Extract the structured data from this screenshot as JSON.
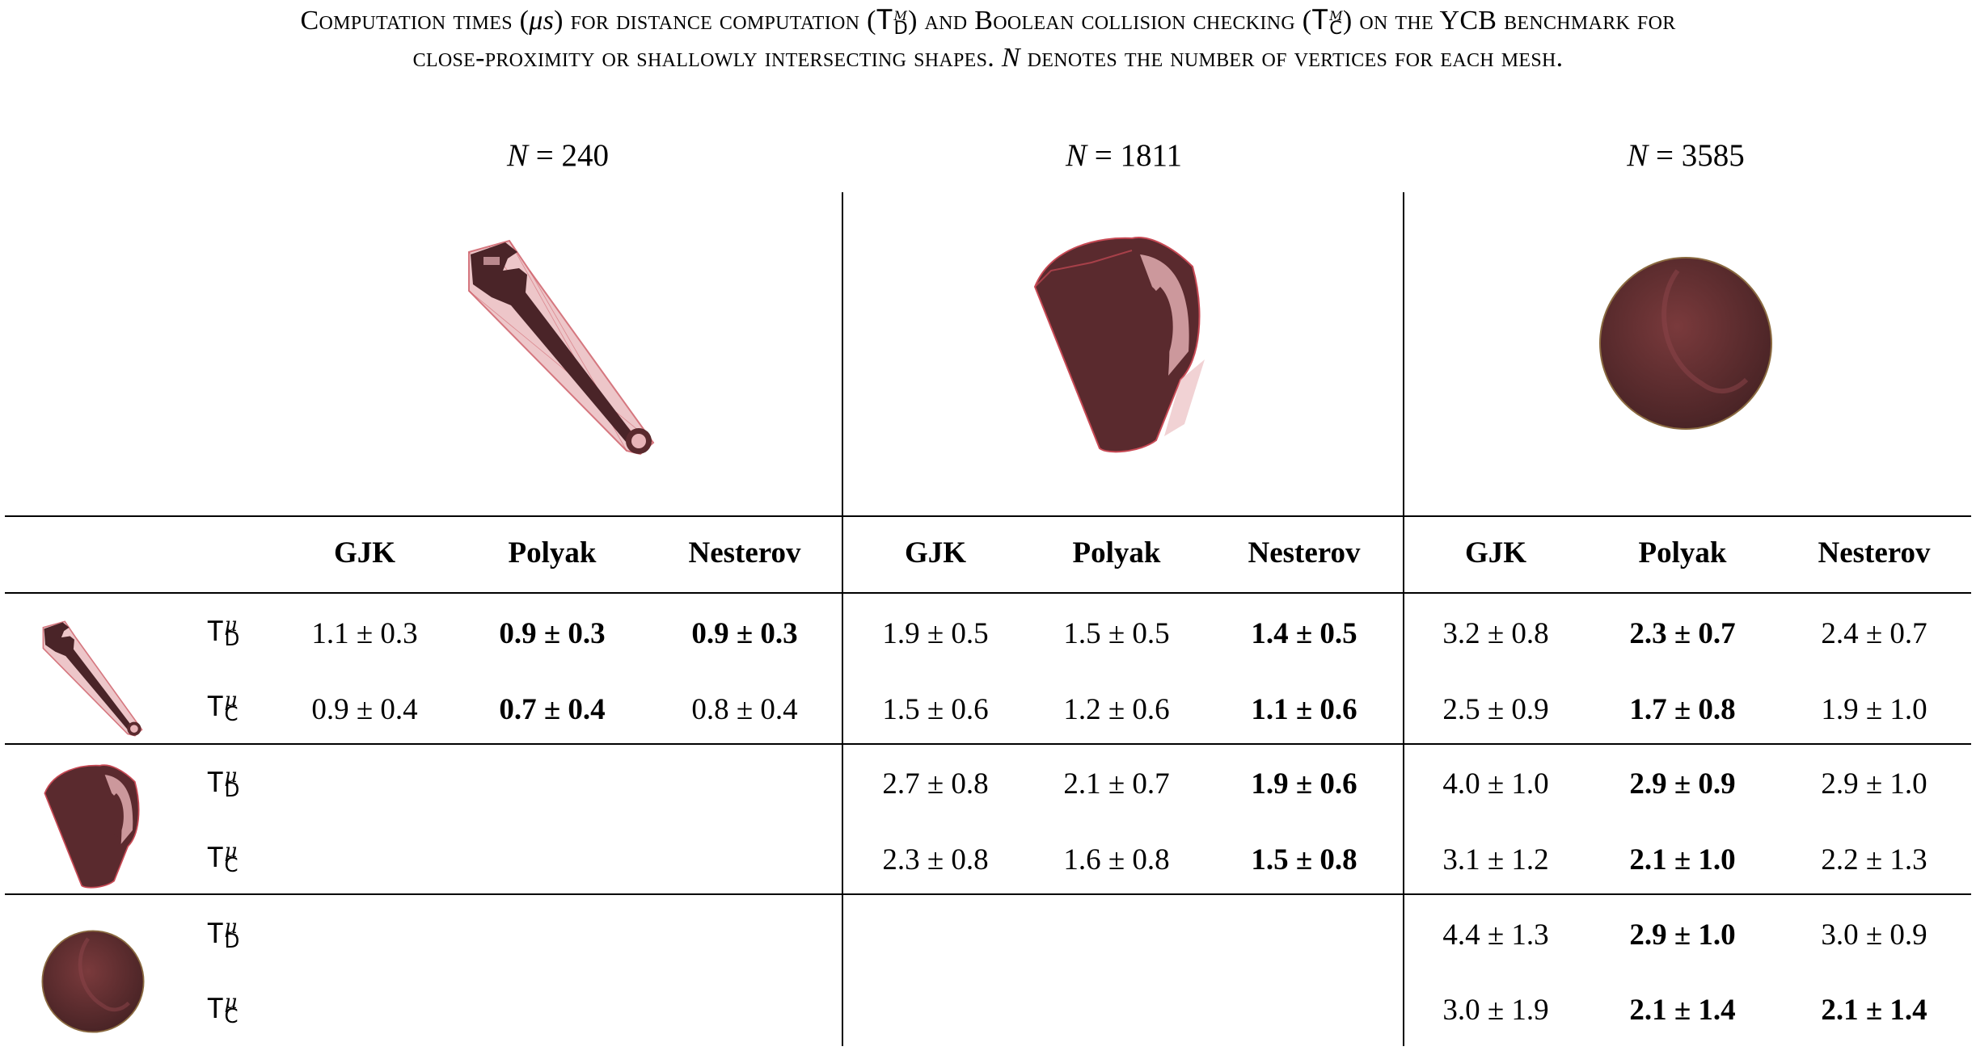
{
  "caption": {
    "p1": "Computation times (",
    "mu_s": "μs",
    "p2": ") for distance computation (",
    "T": "T",
    "mu": "μ",
    "D": "D",
    "p3": ") and Boolean collision checking (",
    "C": "C",
    "p4": ") on the YCB benchmark for",
    "line2a": "close-proximity or shallowly intersecting shapes. ",
    "N": "N",
    "line2b": " denotes the number of vertices for each mesh."
  },
  "groups": [
    {
      "n_label": "N",
      "eq": " = 240",
      "mesh_icon": "wrench-mesh-icon"
    },
    {
      "n_label": "N",
      "eq": " = 1811",
      "mesh_icon": "pitcher-mesh-icon"
    },
    {
      "n_label": "N",
      "eq": " = 3585",
      "mesh_icon": "ball-mesh-icon"
    }
  ],
  "methods": [
    "GJK",
    "Polyak",
    "Nesterov",
    "GJK",
    "Polyak",
    "Nesterov",
    "GJK",
    "Polyak",
    "Nesterov"
  ],
  "row_label": {
    "T": "T",
    "mu": "μ",
    "D": "D",
    "C": "C"
  },
  "rows": [
    {
      "mesh_icon": "wrench-mesh-icon",
      "td": [
        "1.1 ± 0.3",
        "0.9 ± 0.3",
        "0.9 ± 0.3",
        "1.9 ± 0.5",
        "1.5 ± 0.5",
        "1.4 ± 0.5",
        "3.2 ± 0.8",
        "2.3 ± 0.7",
        "2.4 ± 0.7"
      ],
      "td_bold": [
        false,
        true,
        true,
        false,
        false,
        true,
        false,
        true,
        false
      ],
      "tc": [
        "0.9 ± 0.4",
        "0.7 ± 0.4",
        "0.8 ± 0.4",
        "1.5 ± 0.6",
        "1.2 ± 0.6",
        "1.1 ± 0.6",
        "2.5 ± 0.9",
        "1.7 ± 0.8",
        "1.9 ± 1.0"
      ],
      "tc_bold": [
        false,
        true,
        false,
        false,
        false,
        true,
        false,
        true,
        false
      ]
    },
    {
      "mesh_icon": "pitcher-mesh-icon",
      "td": [
        "",
        "",
        "",
        "2.7 ± 0.8",
        "2.1 ± 0.7",
        "1.9 ± 0.6",
        "4.0 ± 1.0",
        "2.9 ± 0.9",
        "2.9 ± 1.0"
      ],
      "td_bold": [
        false,
        false,
        false,
        false,
        false,
        true,
        false,
        true,
        false
      ],
      "tc": [
        "",
        "",
        "",
        "2.3 ± 0.8",
        "1.6 ± 0.8",
        "1.5 ± 0.8",
        "3.1 ± 1.2",
        "2.1 ± 1.0",
        "2.2 ± 1.3"
      ],
      "tc_bold": [
        false,
        false,
        false,
        false,
        false,
        true,
        false,
        true,
        false
      ]
    },
    {
      "mesh_icon": "ball-mesh-icon",
      "td": [
        "",
        "",
        "",
        "",
        "",
        "",
        "4.4 ± 1.3",
        "2.9 ± 1.0",
        "3.0 ± 0.9"
      ],
      "td_bold": [
        false,
        false,
        false,
        false,
        false,
        false,
        false,
        true,
        false
      ],
      "tc": [
        "",
        "",
        "",
        "",
        "",
        "",
        "3.0 ± 1.9",
        "2.1 ± 1.4",
        "2.1 ± 1.4"
      ],
      "tc_bold": [
        false,
        false,
        false,
        false,
        false,
        false,
        false,
        true,
        true
      ]
    }
  ],
  "colors": {
    "mesh_dark": "#5a2a2e",
    "mesh_light": "#e8b4b8",
    "mesh_edge": "#c84a55"
  }
}
